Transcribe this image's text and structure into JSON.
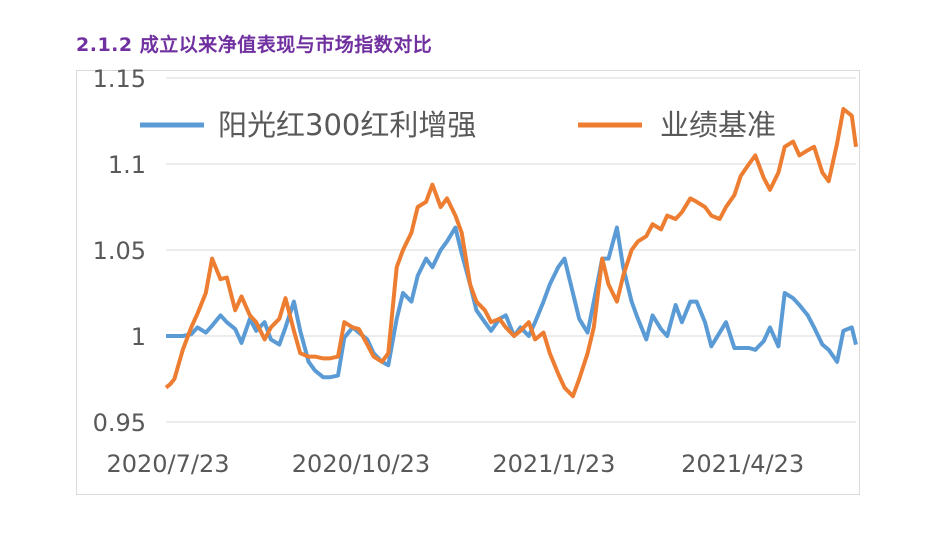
{
  "section_title": "2.1.2  成立以来净值表现与市场指数对比",
  "chart_data": {
    "type": "line",
    "title": "",
    "xlabel": "",
    "ylabel": "",
    "ylim": [
      0.95,
      1.15
    ],
    "y_ticks": [
      "0.95",
      "1",
      "1.05",
      "1.1",
      "1.15"
    ],
    "x_ticks": [
      {
        "label": "2020/7/23",
        "date": "2020-07-23"
      },
      {
        "label": "2020/10/23",
        "date": "2020-10-23"
      },
      {
        "label": "2021/1/23",
        "date": "2021-01-23"
      },
      {
        "label": "2021/4/23",
        "date": "2021-04-23"
      }
    ],
    "grid": true,
    "legend": "top",
    "series": [
      {
        "name": "阳光红300红利增强",
        "color": "#5b9bd5",
        "points": [
          [
            "2020-07-23",
            1.0
          ],
          [
            "2020-07-27",
            1.0
          ],
          [
            "2020-07-31",
            1.0
          ],
          [
            "2020-08-04",
            1.001
          ],
          [
            "2020-08-07",
            1.005
          ],
          [
            "2020-08-11",
            1.002
          ],
          [
            "2020-08-14",
            1.006
          ],
          [
            "2020-08-18",
            1.012
          ],
          [
            "2020-08-21",
            1.008
          ],
          [
            "2020-08-25",
            1.004
          ],
          [
            "2020-08-28",
            0.996
          ],
          [
            "2020-09-01",
            1.01
          ],
          [
            "2020-09-04",
            1.003
          ],
          [
            "2020-09-08",
            1.008
          ],
          [
            "2020-09-11",
            0.998
          ],
          [
            "2020-09-15",
            0.995
          ],
          [
            "2020-09-18",
            1.005
          ],
          [
            "2020-09-22",
            1.02
          ],
          [
            "2020-09-25",
            1.003
          ],
          [
            "2020-09-29",
            0.985
          ],
          [
            "2020-10-02",
            0.98
          ],
          [
            "2020-10-06",
            0.976
          ],
          [
            "2020-10-09",
            0.976
          ],
          [
            "2020-10-13",
            0.977
          ],
          [
            "2020-10-16",
            0.999
          ],
          [
            "2020-10-20",
            1.005
          ],
          [
            "2020-10-23",
            1.002
          ],
          [
            "2020-10-27",
            0.998
          ],
          [
            "2020-10-30",
            0.99
          ],
          [
            "2020-11-03",
            0.985
          ],
          [
            "2020-11-06",
            0.983
          ],
          [
            "2020-11-10",
            1.01
          ],
          [
            "2020-11-13",
            1.025
          ],
          [
            "2020-11-17",
            1.02
          ],
          [
            "2020-11-20",
            1.035
          ],
          [
            "2020-11-24",
            1.045
          ],
          [
            "2020-11-27",
            1.04
          ],
          [
            "2020-12-01",
            1.05
          ],
          [
            "2020-12-04",
            1.055
          ],
          [
            "2020-12-08",
            1.063
          ],
          [
            "2020-12-11",
            1.048
          ],
          [
            "2020-12-15",
            1.03
          ],
          [
            "2020-12-18",
            1.015
          ],
          [
            "2020-12-22",
            1.008
          ],
          [
            "2020-12-25",
            1.003
          ],
          [
            "2020-12-29",
            1.01
          ],
          [
            "2021-01-01",
            1.012
          ],
          [
            "2021-01-05",
            1.0
          ],
          [
            "2021-01-08",
            1.005
          ],
          [
            "2021-01-12",
            1.0
          ],
          [
            "2021-01-15",
            1.008
          ],
          [
            "2021-01-19",
            1.02
          ],
          [
            "2021-01-22",
            1.03
          ],
          [
            "2021-01-26",
            1.04
          ],
          [
            "2021-01-29",
            1.045
          ],
          [
            "2021-02-02",
            1.025
          ],
          [
            "2021-02-05",
            1.01
          ],
          [
            "2021-02-09",
            1.002
          ],
          [
            "2021-02-12",
            1.02
          ],
          [
            "2021-02-16",
            1.045
          ],
          [
            "2021-02-19",
            1.045
          ],
          [
            "2021-02-23",
            1.063
          ],
          [
            "2021-02-26",
            1.04
          ],
          [
            "2021-03-02",
            1.02
          ],
          [
            "2021-03-05",
            1.01
          ],
          [
            "2021-03-09",
            0.998
          ],
          [
            "2021-03-12",
            1.012
          ],
          [
            "2021-03-16",
            1.004
          ],
          [
            "2021-03-19",
            1.0
          ],
          [
            "2021-03-23",
            1.018
          ],
          [
            "2021-03-26",
            1.008
          ],
          [
            "2021-03-30",
            1.02
          ],
          [
            "2021-04-02",
            1.02
          ],
          [
            "2021-04-06",
            1.008
          ],
          [
            "2021-04-09",
            0.994
          ],
          [
            "2021-04-13",
            1.002
          ],
          [
            "2021-04-16",
            1.008
          ],
          [
            "2021-04-20",
            0.993
          ],
          [
            "2021-04-23",
            0.993
          ],
          [
            "2021-04-27",
            0.993
          ],
          [
            "2021-04-30",
            0.992
          ],
          [
            "2021-05-04",
            0.997
          ],
          [
            "2021-05-07",
            1.005
          ],
          [
            "2021-05-11",
            0.994
          ],
          [
            "2021-05-14",
            1.025
          ],
          [
            "2021-05-18",
            1.022
          ],
          [
            "2021-05-21",
            1.018
          ],
          [
            "2021-05-25",
            1.012
          ],
          [
            "2021-05-28",
            1.005
          ],
          [
            "2021-06-01",
            0.995
          ],
          [
            "2021-06-04",
            0.992
          ],
          [
            "2021-06-08",
            0.985
          ],
          [
            "2021-06-11",
            1.003
          ],
          [
            "2021-06-15",
            1.005
          ],
          [
            "2021-06-17",
            0.995
          ]
        ]
      },
      {
        "name": "业绩基准",
        "color": "#ed7d31",
        "points": [
          [
            "2020-07-23",
            0.97
          ],
          [
            "2020-07-25",
            0.972
          ],
          [
            "2020-07-27",
            0.975
          ],
          [
            "2020-07-31",
            0.992
          ],
          [
            "2020-08-04",
            1.005
          ],
          [
            "2020-08-07",
            1.013
          ],
          [
            "2020-08-11",
            1.025
          ],
          [
            "2020-08-14",
            1.045
          ],
          [
            "2020-08-18",
            1.033
          ],
          [
            "2020-08-21",
            1.034
          ],
          [
            "2020-08-25",
            1.015
          ],
          [
            "2020-08-28",
            1.023
          ],
          [
            "2020-09-01",
            1.012
          ],
          [
            "2020-09-04",
            1.008
          ],
          [
            "2020-09-08",
            0.998
          ],
          [
            "2020-09-11",
            1.005
          ],
          [
            "2020-09-15",
            1.01
          ],
          [
            "2020-09-18",
            1.022
          ],
          [
            "2020-09-22",
            1.003
          ],
          [
            "2020-09-25",
            0.99
          ],
          [
            "2020-09-29",
            0.988
          ],
          [
            "2020-10-02",
            0.988
          ],
          [
            "2020-10-06",
            0.987
          ],
          [
            "2020-10-09",
            0.987
          ],
          [
            "2020-10-13",
            0.988
          ],
          [
            "2020-10-16",
            1.008
          ],
          [
            "2020-10-20",
            1.005
          ],
          [
            "2020-10-23",
            1.004
          ],
          [
            "2020-10-27",
            0.995
          ],
          [
            "2020-10-30",
            0.988
          ],
          [
            "2020-11-03",
            0.985
          ],
          [
            "2020-11-06",
            0.99
          ],
          [
            "2020-11-10",
            1.04
          ],
          [
            "2020-11-13",
            1.05
          ],
          [
            "2020-11-17",
            1.06
          ],
          [
            "2020-11-20",
            1.075
          ],
          [
            "2020-11-24",
            1.078
          ],
          [
            "2020-11-27",
            1.088
          ],
          [
            "2020-12-01",
            1.075
          ],
          [
            "2020-12-04",
            1.08
          ],
          [
            "2020-12-08",
            1.07
          ],
          [
            "2020-12-11",
            1.06
          ],
          [
            "2020-12-15",
            1.03
          ],
          [
            "2020-12-18",
            1.02
          ],
          [
            "2020-12-22",
            1.015
          ],
          [
            "2020-12-25",
            1.008
          ],
          [
            "2020-12-29",
            1.01
          ],
          [
            "2021-01-01",
            1.005
          ],
          [
            "2021-01-05",
            1.0
          ],
          [
            "2021-01-08",
            1.003
          ],
          [
            "2021-01-12",
            1.008
          ],
          [
            "2021-01-15",
            0.998
          ],
          [
            "2021-01-19",
            1.002
          ],
          [
            "2021-01-22",
            0.99
          ],
          [
            "2021-01-26",
            0.978
          ],
          [
            "2021-01-29",
            0.97
          ],
          [
            "2021-02-02",
            0.965
          ],
          [
            "2021-02-05",
            0.975
          ],
          [
            "2021-02-09",
            0.99
          ],
          [
            "2021-02-12",
            1.005
          ],
          [
            "2021-02-16",
            1.045
          ],
          [
            "2021-02-19",
            1.03
          ],
          [
            "2021-02-23",
            1.02
          ],
          [
            "2021-02-26",
            1.035
          ],
          [
            "2021-03-02",
            1.05
          ],
          [
            "2021-03-05",
            1.055
          ],
          [
            "2021-03-09",
            1.058
          ],
          [
            "2021-03-12",
            1.065
          ],
          [
            "2021-03-16",
            1.062
          ],
          [
            "2021-03-19",
            1.07
          ],
          [
            "2021-03-23",
            1.068
          ],
          [
            "2021-03-26",
            1.072
          ],
          [
            "2021-03-30",
            1.08
          ],
          [
            "2021-04-02",
            1.078
          ],
          [
            "2021-04-06",
            1.075
          ],
          [
            "2021-04-09",
            1.07
          ],
          [
            "2021-04-13",
            1.068
          ],
          [
            "2021-04-16",
            1.075
          ],
          [
            "2021-04-20",
            1.082
          ],
          [
            "2021-04-23",
            1.093
          ],
          [
            "2021-04-27",
            1.1
          ],
          [
            "2021-04-30",
            1.105
          ],
          [
            "2021-05-04",
            1.092
          ],
          [
            "2021-05-07",
            1.085
          ],
          [
            "2021-05-11",
            1.095
          ],
          [
            "2021-05-14",
            1.11
          ],
          [
            "2021-05-18",
            1.113
          ],
          [
            "2021-05-21",
            1.105
          ],
          [
            "2021-05-25",
            1.108
          ],
          [
            "2021-05-28",
            1.11
          ],
          [
            "2021-06-01",
            1.095
          ],
          [
            "2021-06-04",
            1.09
          ],
          [
            "2021-06-08",
            1.112
          ],
          [
            "2021-06-11",
            1.132
          ],
          [
            "2021-06-15",
            1.128
          ],
          [
            "2021-06-17",
            1.11
          ]
        ]
      }
    ]
  }
}
